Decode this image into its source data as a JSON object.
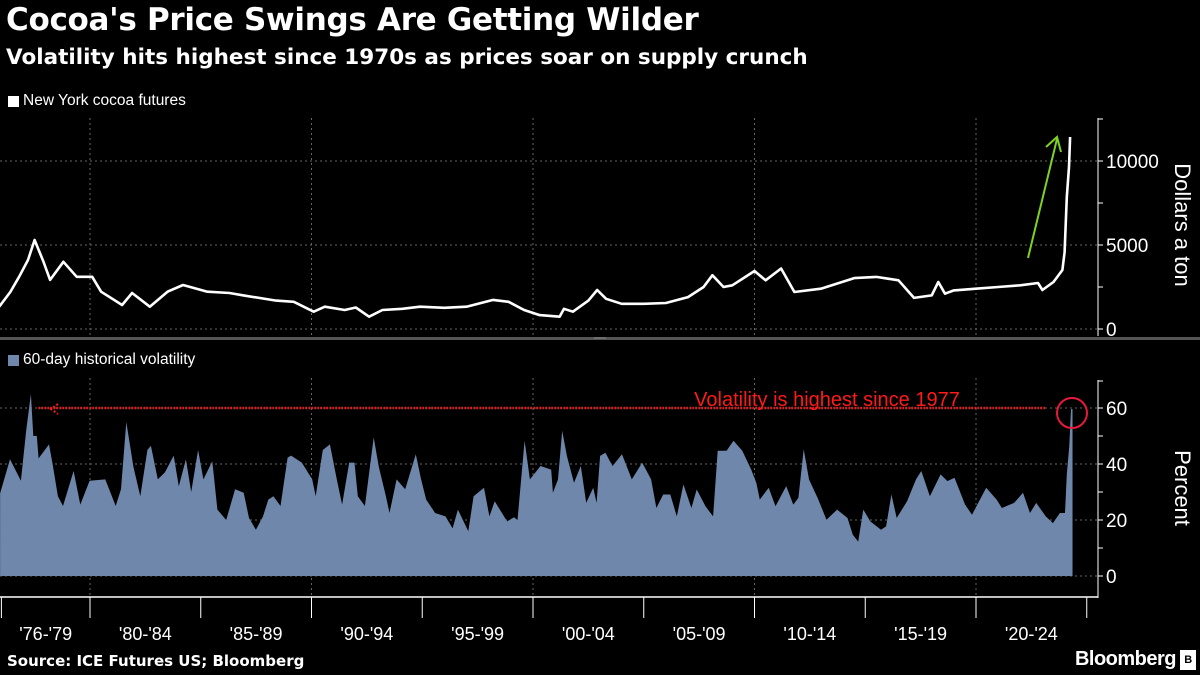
{
  "header": {
    "title": "Cocoa's Price Swings Are Getting Wilder",
    "subtitle": "Volatility hits highest since 1970s as prices soar on supply crunch"
  },
  "footer": {
    "source": "Source: ICE Futures US; Bloomberg",
    "logo": "Bloomberg",
    "logo_badge": "B"
  },
  "colors": {
    "price_line": "#ffffff",
    "volatility_fill": "#6f87aa",
    "annotation_red": "#ff1a1a",
    "arrow_green": "#7ed321",
    "grid": "#666666"
  },
  "chart_data": [
    {
      "type": "line",
      "legend": "New York cocoa futures",
      "ylabel": "Dollars a ton",
      "ylim": [
        0,
        12000
      ],
      "yticks": [
        0,
        5000,
        10000
      ],
      "xlim": [
        1975.9,
        2024.8
      ],
      "grid": true,
      "annotation": {
        "type": "arrow",
        "text": "",
        "meaning": "prices soaring"
      },
      "series": [
        {
          "name": "New York cocoa futures",
          "x": [
            1975.9,
            1976.4,
            1976.8,
            1977.2,
            1977.5,
            1977.9,
            1978.2,
            1978.8,
            1979.4,
            1980.1,
            1980.5,
            1981.45,
            1981.9,
            1982.7,
            1983.5,
            1984.2,
            1985.3,
            1986.3,
            1987.0,
            1988.4,
            1989.2,
            1990.1,
            1990.6,
            1991.5,
            1992.0,
            1992.6,
            1993.2,
            1994.1,
            1994.9,
            1996.0,
            1997.0,
            1998.2,
            1998.9,
            1999.6,
            2000.3,
            2001.2,
            2001.4,
            2001.8,
            2002.5,
            2002.9,
            2003.3,
            2004.0,
            2005.0,
            2006.0,
            2007.0,
            2007.7,
            2008.1,
            2008.6,
            2009.0,
            2010.0,
            2010.5,
            2011.2,
            2011.8,
            2013.0,
            2014.5,
            2015.5,
            2016.5,
            2017.2,
            2018.0,
            2018.3,
            2018.6,
            2019.0,
            2020.0,
            2021.0,
            2022.0,
            2022.8,
            2023.0,
            2023.5,
            2023.9,
            2024.0,
            2024.1,
            2024.2,
            2024.25
          ],
          "y": [
            1330,
            2200,
            3110,
            4110,
            5300,
            4000,
            2920,
            4000,
            3110,
            3110,
            2220,
            1430,
            2140,
            1330,
            2220,
            2620,
            2220,
            2140,
            1980,
            1690,
            1620,
            1030,
            1330,
            1130,
            1280,
            730,
            1130,
            1200,
            1330,
            1260,
            1330,
            1730,
            1620,
            1130,
            830,
            730,
            1200,
            1030,
            1690,
            2320,
            1800,
            1500,
            1500,
            1550,
            1900,
            2500,
            3200,
            2500,
            2600,
            3450,
            2900,
            3600,
            2200,
            2400,
            3030,
            3100,
            2900,
            1850,
            2000,
            2800,
            2100,
            2300,
            2400,
            2500,
            2600,
            2740,
            2320,
            2800,
            3510,
            4580,
            7850,
            9640,
            11430
          ]
        }
      ]
    },
    {
      "type": "area",
      "legend": "60-day historical volatility",
      "ylabel": "Percent",
      "ylim": [
        0,
        70
      ],
      "yticks": [
        0,
        20,
        40,
        60
      ],
      "xlim": [
        1975.9,
        2024.8
      ],
      "grid": true,
      "xticklabels": [
        "'76-'79",
        "'80-'84",
        "'85-'89",
        "'90-'94",
        "'95-'99",
        "'00-'04",
        "'05-'09",
        "'10-'14",
        "'15-'19",
        "'20-'24"
      ],
      "annotation": {
        "text": "Volatility is highest since 1977",
        "reference_value": 60,
        "from_year": 1977.4
      },
      "series": [
        {
          "name": "60-day historical volatility",
          "x": [
            1975.94,
            1976.39,
            1976.88,
            1977.12,
            1977.33,
            1977.44,
            1977.6,
            1977.68,
            1978.15,
            1978.31,
            1978.55,
            1978.78,
            1979.26,
            1979.56,
            1979.98,
            1980.69,
            1981.16,
            1981.4,
            1981.64,
            1981.96,
            1982.27,
            1982.59,
            1982.75,
            1983.06,
            1983.38,
            1983.78,
            1984.01,
            1984.33,
            1984.57,
            1984.88,
            1985.12,
            1985.52,
            1985.75,
            1986.15,
            1986.55,
            1986.94,
            1987.18,
            1987.49,
            1987.81,
            1988.05,
            1988.28,
            1988.6,
            1988.92,
            1989.08,
            1989.56,
            1990.03,
            1990.19,
            1990.51,
            1990.83,
            1991.14,
            1991.38,
            1991.7,
            1991.94,
            1992.09,
            1992.41,
            1992.81,
            1993.04,
            1993.36,
            1993.52,
            1993.84,
            1994.23,
            1994.71,
            1994.95,
            1995.18,
            1995.58,
            1996.05,
            1996.37,
            1996.61,
            1997.08,
            1997.32,
            1997.79,
            1998.03,
            1998.27,
            1998.83,
            1999.14,
            1999.3,
            1999.62,
            1999.86,
            2000.34,
            2000.82,
            2000.9,
            2001.13,
            2001.32,
            2001.53,
            2001.85,
            2002.16,
            2002.4,
            2002.72,
            2002.87,
            2003.03,
            2003.27,
            2003.59,
            2004.02,
            2004.46,
            2004.93,
            2005.33,
            2005.57,
            2005.88,
            2006.2,
            2006.49,
            2006.79,
            2007.15,
            2007.39,
            2007.79,
            2008.13,
            2008.34,
            2008.74,
            2009.05,
            2009.45,
            2009.85,
            2010.08,
            2010.24,
            2010.64,
            2010.95,
            2011.43,
            2011.75,
            2011.98,
            2012.22,
            2012.46,
            2012.85,
            2013.25,
            2013.73,
            2014.2,
            2014.44,
            2014.68,
            2014.91,
            2015.23,
            2015.71,
            2015.94,
            2016.18,
            2016.42,
            2016.89,
            2017.29,
            2017.53,
            2017.92,
            2018.4,
            2018.71,
            2019.03,
            2019.51,
            2019.82,
            2020.46,
            2020.93,
            2021.17,
            2021.72,
            2022.12,
            2022.44,
            2022.72,
            2023.15,
            2023.47,
            2023.79,
            2024.02,
            2024.1,
            2024.21,
            2024.29
          ],
          "y": [
            29.5,
            41.7,
            34,
            52,
            65,
            50,
            50,
            42,
            47,
            40,
            28.5,
            25,
            37.5,
            25.5,
            34,
            34.5,
            25,
            31,
            55,
            39,
            28.5,
            45,
            46.5,
            34.5,
            37,
            43,
            32,
            41.7,
            30,
            45,
            34.5,
            41,
            23.7,
            20,
            31,
            29.7,
            20.7,
            16.5,
            21.3,
            27.3,
            28.5,
            25,
            42.3,
            43,
            40.5,
            34.5,
            28.5,
            45,
            47,
            34.5,
            25.5,
            40.5,
            40.5,
            28.5,
            25,
            49.5,
            39,
            28.5,
            22.5,
            34.5,
            31,
            43.5,
            34.5,
            27.3,
            22.5,
            21.3,
            17,
            23.7,
            16,
            28.5,
            31.5,
            21.3,
            26.7,
            19.5,
            21,
            20,
            48.3,
            34.5,
            39.3,
            38,
            29.7,
            34.5,
            51.9,
            42.9,
            33.3,
            39.3,
            26.1,
            31.5,
            26.1,
            42.9,
            44,
            39.3,
            43.5,
            34.5,
            40.5,
            34.5,
            24.3,
            29.1,
            29.1,
            21.3,
            32.7,
            24.3,
            30.9,
            24.9,
            21.3,
            44.7,
            44.7,
            48.3,
            44.7,
            38,
            33.3,
            27.3,
            31.5,
            24.9,
            32.1,
            25.5,
            27.9,
            45.3,
            34.5,
            27.9,
            20.1,
            23.7,
            20.7,
            14.7,
            12.3,
            23.7,
            19.5,
            16.5,
            17.7,
            29.1,
            20.7,
            26.7,
            34.5,
            37.5,
            28.5,
            36.3,
            33.9,
            35.1,
            25.5,
            21.9,
            31.5,
            27.3,
            24.3,
            26.1,
            29.7,
            22.5,
            26.1,
            21.3,
            18.9,
            22.5,
            22.5,
            36.3,
            46.5,
            59.6
          ]
        }
      ]
    }
  ]
}
